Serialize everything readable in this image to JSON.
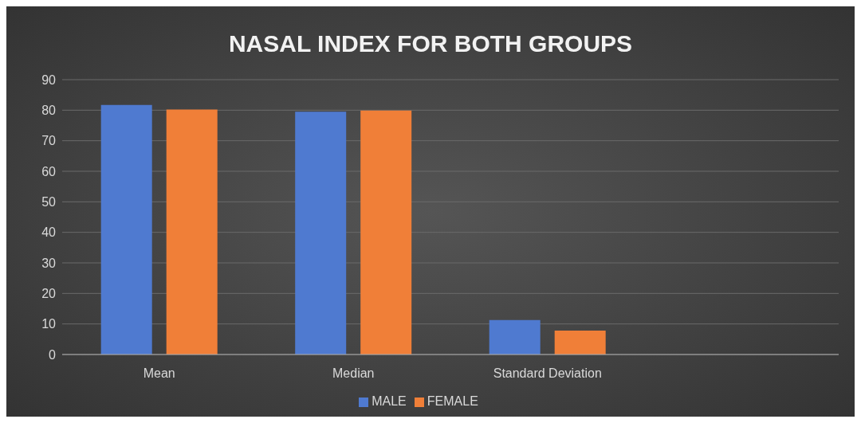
{
  "chart_data": {
    "type": "bar",
    "title": "NASAL INDEX FOR BOTH GROUPS",
    "categories": [
      "Mean",
      "Median",
      "Standard Deviation",
      null
    ],
    "series": [
      {
        "name": "MALE",
        "color": "#4f7ad0",
        "values": [
          81.7,
          79.5,
          11.3,
          null
        ]
      },
      {
        "name": "FEMALE",
        "color": "#f07f38",
        "values": [
          80.2,
          79.9,
          7.8,
          null
        ]
      }
    ],
    "ylim": [
      0,
      90
    ],
    "yticks": [
      0,
      10,
      20,
      30,
      40,
      50,
      60,
      70,
      80,
      90
    ],
    "grid": "y",
    "legend": "bottom"
  }
}
